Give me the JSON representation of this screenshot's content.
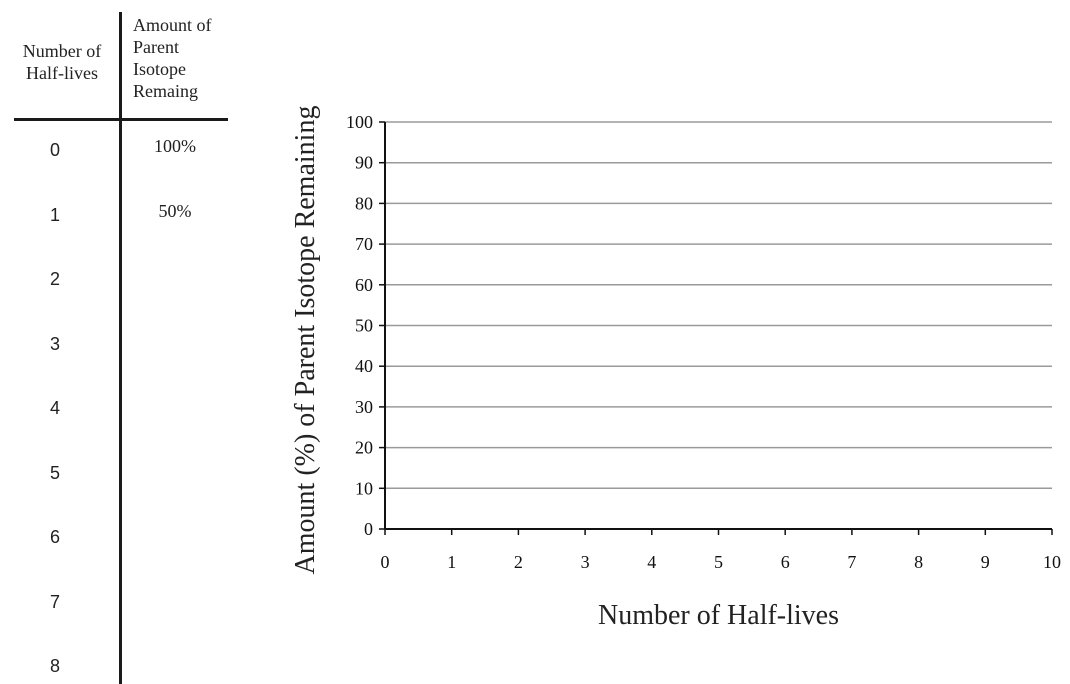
{
  "table": {
    "header_left": "Number of Half-lives",
    "header_right": [
      "Amount of",
      "Parent",
      "Isotope",
      "Remaing"
    ],
    "rows": [
      {
        "n": "0",
        "amount": "100%"
      },
      {
        "n": "1",
        "amount": "50%"
      },
      {
        "n": "2",
        "amount": ""
      },
      {
        "n": "3",
        "amount": ""
      },
      {
        "n": "4",
        "amount": ""
      },
      {
        "n": "5",
        "amount": ""
      },
      {
        "n": "6",
        "amount": ""
      },
      {
        "n": "7",
        "amount": ""
      },
      {
        "n": "8",
        "amount": ""
      }
    ]
  },
  "chart_data": {
    "type": "line",
    "title": "",
    "xlabel": "Number of Half-lives",
    "ylabel": "Amount (%) of Parent Isotope Remaining",
    "xlim": [
      0,
      10
    ],
    "ylim": [
      0,
      100
    ],
    "x_ticks": [
      0,
      1,
      2,
      3,
      4,
      5,
      6,
      7,
      8,
      9,
      10
    ],
    "y_ticks": [
      0,
      10,
      20,
      30,
      40,
      50,
      60,
      70,
      80,
      90,
      100
    ],
    "grid": "horizontal",
    "series": [],
    "colors": {
      "grid": "#9a9a9a",
      "axis": "#111111"
    }
  }
}
